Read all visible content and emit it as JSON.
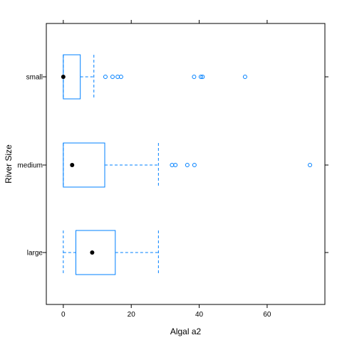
{
  "chart_data": {
    "type": "boxplot",
    "orientation": "horizontal",
    "title": "",
    "xlabel": "Algal  a2",
    "ylabel": "River Size",
    "xlim": [
      -5,
      77
    ],
    "xticks": [
      0,
      20,
      40,
      60
    ],
    "categories": [
      "small",
      "medium",
      "large"
    ],
    "grid": false,
    "colors": {
      "box": "#0080ff",
      "median": "#000000",
      "frame": "#000000"
    },
    "boxes": [
      {
        "category": "small",
        "whisker_low": 0,
        "q1": 0,
        "median": 0,
        "q3": 5,
        "whisker_high": 9,
        "outliers": [
          12.4,
          14.5,
          16,
          17,
          38.5,
          40.5,
          41,
          53.5
        ]
      },
      {
        "category": "medium",
        "whisker_low": 0,
        "q1": 0,
        "median": 2.6,
        "q3": 12.2,
        "whisker_high": 28,
        "outliers": [
          32,
          33,
          36.5,
          38.6,
          72.6
        ]
      },
      {
        "category": "large",
        "whisker_low": 0,
        "q1": 3.7,
        "median": 8.5,
        "q3": 15.3,
        "whisker_high": 28,
        "outliers": []
      }
    ]
  }
}
